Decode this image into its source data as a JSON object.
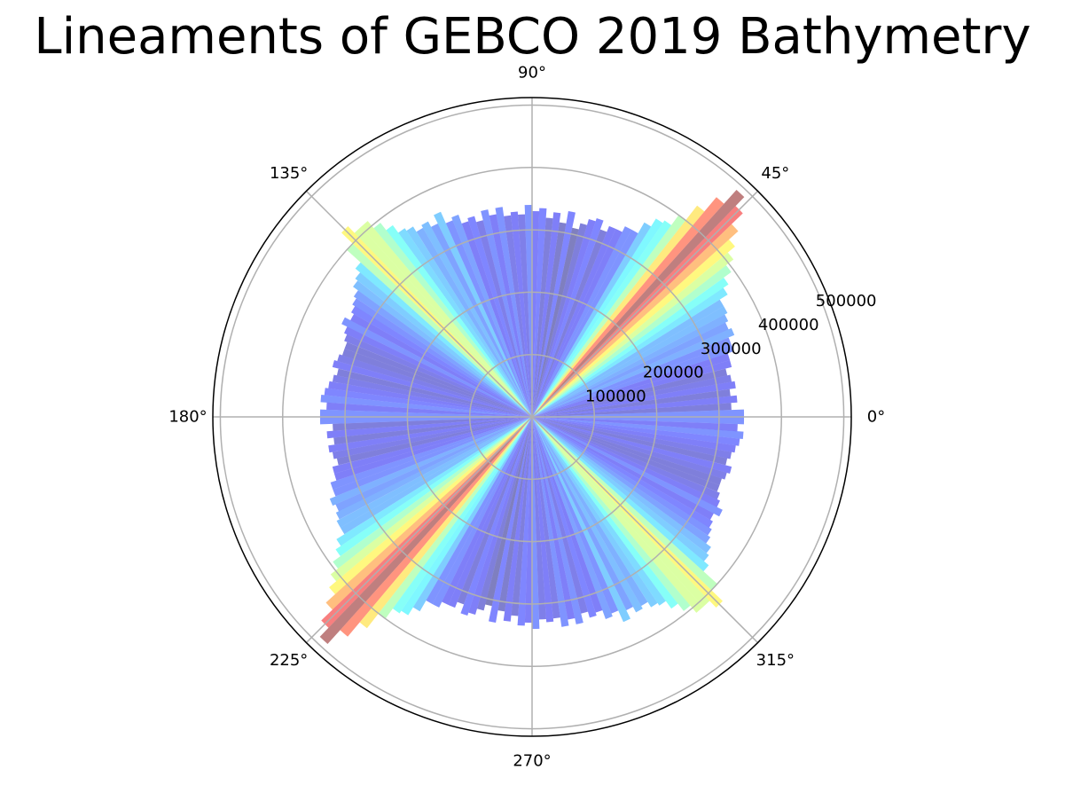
{
  "chart_data": {
    "type": "bar",
    "projection": "polar",
    "title": "Lineaments of GEBCO 2019 Bathymetry",
    "theta_unit": "degrees",
    "theta_tick_labels": [
      "0°",
      "45°",
      "90°",
      "135°",
      "180°",
      "225°",
      "270°",
      "315°"
    ],
    "radial_tick_values": [
      100000,
      200000,
      300000,
      400000,
      500000
    ],
    "radial_tick_labels": [
      "100000",
      "200000",
      "300000",
      "400000",
      "500000"
    ],
    "rlim": [
      0,
      512000
    ],
    "bin_width_deg": 2,
    "symmetric_about_180": true,
    "grid": true,
    "colormap": "jet",
    "bar_alpha": 0.5,
    "bin_centers_deg": [
      1,
      3,
      5,
      7,
      9,
      11,
      13,
      15,
      17,
      19,
      21,
      23,
      25,
      27,
      29,
      31,
      33,
      35,
      37,
      39,
      41,
      43,
      45,
      47,
      49,
      51,
      53,
      55,
      57,
      59,
      61,
      63,
      65,
      67,
      69,
      71,
      73,
      75,
      77,
      79,
      81,
      83,
      85,
      87,
      89,
      91,
      93,
      95,
      97,
      99,
      101,
      103,
      105,
      107,
      109,
      111,
      113,
      115,
      117,
      119,
      121,
      123,
      125,
      127,
      129,
      131,
      133,
      135,
      137,
      139,
      141,
      143,
      145,
      147,
      149,
      151,
      153,
      155,
      157,
      159,
      161,
      163,
      165,
      167,
      169,
      171,
      173,
      175,
      177,
      179
    ],
    "values": [
      340000,
      320000,
      330000,
      320000,
      330000,
      325000,
      320000,
      330000,
      330000,
      340000,
      340000,
      350000,
      345000,
      350000,
      355000,
      355000,
      370000,
      380000,
      395000,
      410000,
      425000,
      445000,
      470000,
      490000,
      460000,
      430000,
      400000,
      380000,
      375000,
      360000,
      340000,
      340000,
      330000,
      330000,
      320000,
      335000,
      330000,
      320000,
      310000,
      335000,
      315000,
      330000,
      320000,
      335000,
      330000,
      340000,
      325000,
      330000,
      325000,
      340000,
      330000,
      340000,
      325000,
      335000,
      330000,
      345000,
      340000,
      360000,
      345000,
      355000,
      350000,
      360000,
      365000,
      380000,
      395000,
      410000,
      410000,
      425000,
      400000,
      370000,
      360000,
      355000,
      345000,
      340000,
      335000,
      330000,
      340000,
      330000,
      325000,
      320000,
      320000,
      325000,
      330000,
      320000,
      325000,
      330000,
      335000,
      340000,
      330000,
      340000
    ]
  }
}
